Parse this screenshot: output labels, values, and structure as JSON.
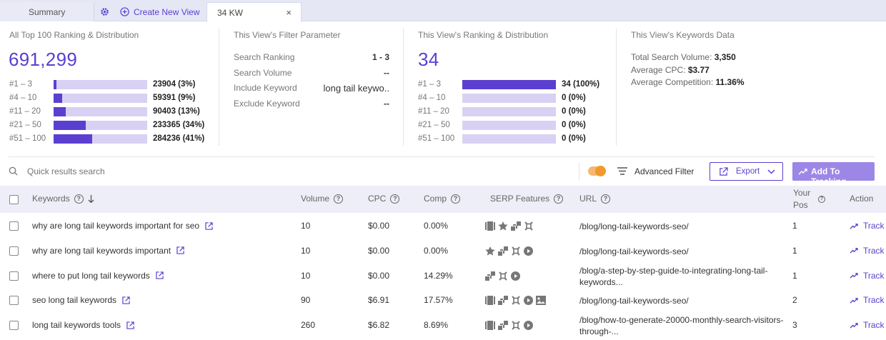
{
  "tabs": {
    "summary": "Summary",
    "create_new_view": "Create New View",
    "active": "34 KW",
    "close": "×"
  },
  "overview": {
    "title": "All Top 100 Ranking & Distribution",
    "total": "691,299",
    "rows": [
      {
        "label": "#1 – 3",
        "value": "23904 (3%)",
        "fraction": 0.03
      },
      {
        "label": "#4 – 10",
        "value": "59391 (9%)",
        "fraction": 0.09
      },
      {
        "label": "#11 – 20",
        "value": "90403 (13%)",
        "fraction": 0.13
      },
      {
        "label": "#21 – 50",
        "value": "233365 (34%)",
        "fraction": 0.34
      },
      {
        "label": "#51 – 100",
        "value": "284236 (41%)",
        "fraction": 0.41
      }
    ]
  },
  "filter": {
    "title": "This View's Filter Parameter",
    "rows": [
      {
        "label": "Search Ranking",
        "value": "1 - 3"
      },
      {
        "label": "Search Volume",
        "value": "--"
      },
      {
        "label": "Include Keyword",
        "value": "long tail keywo.."
      },
      {
        "label": "Exclude Keyword",
        "value": "--"
      }
    ]
  },
  "view_dist": {
    "title": "This View's Ranking & Distribution",
    "total": "34",
    "rows": [
      {
        "label": "#1 – 3",
        "value": "34 (100%)",
        "fraction": 1.0
      },
      {
        "label": "#4 – 10",
        "value": "0 (0%)",
        "fraction": 0
      },
      {
        "label": "#11 – 20",
        "value": "0 (0%)",
        "fraction": 0
      },
      {
        "label": "#21 – 50",
        "value": "0 (0%)",
        "fraction": 0
      },
      {
        "label": "#51 – 100",
        "value": "0 (0%)",
        "fraction": 0
      }
    ]
  },
  "keywords_data": {
    "title": "This View's Keywords Data",
    "total_search_volume_label": "Total Search Volume: ",
    "total_search_volume": "3,350",
    "avg_cpc_label": "Average CPC: ",
    "avg_cpc": "$3.77",
    "avg_comp_label": "Average Competition: ",
    "avg_comp": "11.36%"
  },
  "toolbar": {
    "search_placeholder": "Quick results search",
    "advanced_filter": "Advanced Filter",
    "export": "Export",
    "add_to_tracking": "Add To Tracking",
    "toggle_on": true
  },
  "table": {
    "headers": {
      "keywords": "Keywords",
      "volume": "Volume",
      "cpc": "CPC",
      "comp": "Comp",
      "serp": "SERP Features",
      "url": "URL",
      "your_pos_1": "Your",
      "your_pos_2": "Pos",
      "action": "Action"
    },
    "rows": [
      {
        "keyword": "why are long tail keywords important for seo",
        "volume": "10",
        "cpc": "$0.00",
        "comp": "0.00%",
        "serp": [
          "video-icon",
          "star-icon",
          "sitelinks-icon",
          "puzzle-icon"
        ],
        "url1": "/blog/long-tail-keywords-seo/",
        "url2": "",
        "pos": "1",
        "action": "Track"
      },
      {
        "keyword": "why are long tail keywords important",
        "volume": "10",
        "cpc": "$0.00",
        "comp": "0.00%",
        "serp": [
          "star-icon",
          "sitelinks-icon",
          "puzzle-icon",
          "play-icon"
        ],
        "url1": "/blog/long-tail-keywords-seo/",
        "url2": "",
        "pos": "1",
        "action": "Track"
      },
      {
        "keyword": "where to put long tail keywords",
        "volume": "10",
        "cpc": "$0.00",
        "comp": "14.29%",
        "serp": [
          "sitelinks-icon",
          "puzzle-icon",
          "play-icon"
        ],
        "url1": "/blog/a-step-by-step-guide-to-integrating-long-tail-",
        "url2": "keywords...",
        "pos": "1",
        "action": "Track"
      },
      {
        "keyword": "seo long tail keywords",
        "volume": "90",
        "cpc": "$6.91",
        "comp": "17.57%",
        "serp": [
          "video-icon",
          "sitelinks-icon",
          "puzzle-icon",
          "play-icon",
          "image-icon"
        ],
        "url1": "/blog/long-tail-keywords-seo/",
        "url2": "",
        "pos": "2",
        "action": "Track"
      },
      {
        "keyword": "long tail keywords tools",
        "volume": "260",
        "cpc": "$6.82",
        "comp": "8.69%",
        "serp": [
          "video-icon",
          "sitelinks-icon",
          "puzzle-icon",
          "play-icon"
        ],
        "url1": "/blog/how-to-generate-20000-monthly-search-visitors-",
        "url2": "through-...",
        "pos": "3",
        "action": "Track"
      }
    ]
  },
  "colors": {
    "accent": "#5b3fd0",
    "bar_track": "#d9d1f3",
    "toggle": "#f09a2b",
    "header_bg": "#edeef7"
  }
}
